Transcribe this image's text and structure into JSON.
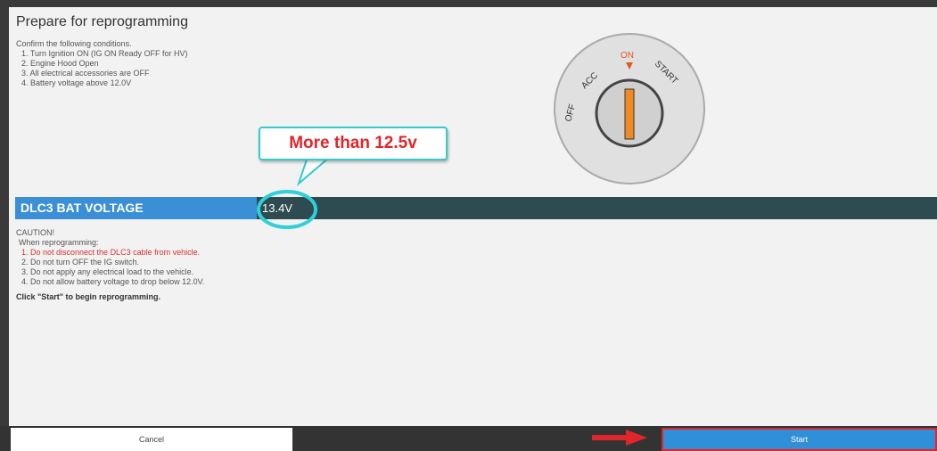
{
  "header": {
    "title": "Prepare for reprogramming"
  },
  "conditions": {
    "intro": "Confirm the following conditions.",
    "items": [
      "1. Turn Ignition ON (IG ON Ready OFF for HV)",
      "2. Engine Hood Open",
      "3. All electrical accessories are OFF",
      "4. Battery voltage above 12.0V"
    ]
  },
  "ignition": {
    "off": "OFF",
    "acc": "ACC",
    "on": "ON",
    "start": "START"
  },
  "callout": "More than 12.5v",
  "voltage": {
    "label": "DLC3 BAT VOLTAGE",
    "value": "13.4V"
  },
  "caution": {
    "title": "CAUTION!",
    "intro": "When reprogramming:",
    "items": [
      "1. Do not disconnect the DLC3 cable from vehicle.",
      "2. Do not turn OFF the IG switch.",
      "3. Do not apply any electrical load to the vehicle.",
      "4. Do not allow battery voltage to drop below 12.0V."
    ]
  },
  "instruction": "Click \"Start\" to begin reprogramming.",
  "buttons": {
    "cancel": "Cancel",
    "start": "Start"
  }
}
